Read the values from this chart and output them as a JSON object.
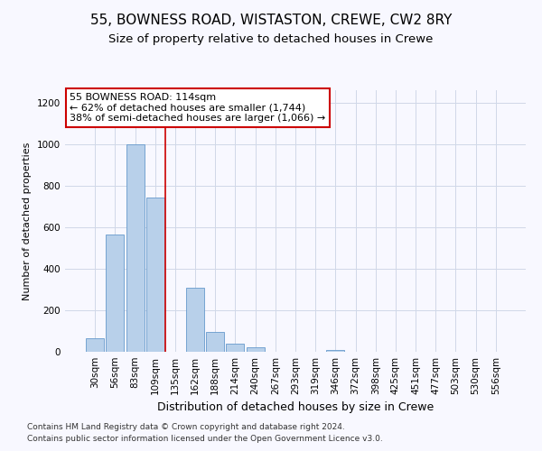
{
  "title1": "55, BOWNESS ROAD, WISTASTON, CREWE, CW2 8RY",
  "title2": "Size of property relative to detached houses in Crewe",
  "xlabel": "Distribution of detached houses by size in Crewe",
  "ylabel": "Number of detached properties",
  "categories": [
    "30sqm",
    "56sqm",
    "83sqm",
    "109sqm",
    "135sqm",
    "162sqm",
    "188sqm",
    "214sqm",
    "240sqm",
    "267sqm",
    "293sqm",
    "319sqm",
    "346sqm",
    "372sqm",
    "398sqm",
    "425sqm",
    "451sqm",
    "477sqm",
    "503sqm",
    "530sqm",
    "556sqm"
  ],
  "values": [
    65,
    565,
    1000,
    745,
    0,
    310,
    95,
    40,
    20,
    0,
    0,
    0,
    10,
    0,
    0,
    0,
    0,
    0,
    0,
    0,
    0
  ],
  "bar_color": "#b8d0ea",
  "bar_edge_color": "#6699cc",
  "vline_x": 3.5,
  "annotation_line1": "55 BOWNESS ROAD: 114sqm",
  "annotation_line2": "← 62% of detached houses are smaller (1,744)",
  "annotation_line3": "38% of semi-detached houses are larger (1,066) →",
  "annotation_box_color": "#ffffff",
  "annotation_box_edge_color": "#cc0000",
  "vline_color": "#cc0000",
  "ylim": [
    0,
    1260
  ],
  "yticks": [
    0,
    200,
    400,
    600,
    800,
    1000,
    1200
  ],
  "grid_color": "#d0d8e8",
  "background_color": "#f8f8ff",
  "footer1": "Contains HM Land Registry data © Crown copyright and database right 2024.",
  "footer2": "Contains public sector information licensed under the Open Government Licence v3.0.",
  "title1_fontsize": 11,
  "title2_fontsize": 9.5,
  "xlabel_fontsize": 9,
  "ylabel_fontsize": 8,
  "tick_fontsize": 7.5,
  "annotation_fontsize": 8,
  "footer_fontsize": 6.5
}
